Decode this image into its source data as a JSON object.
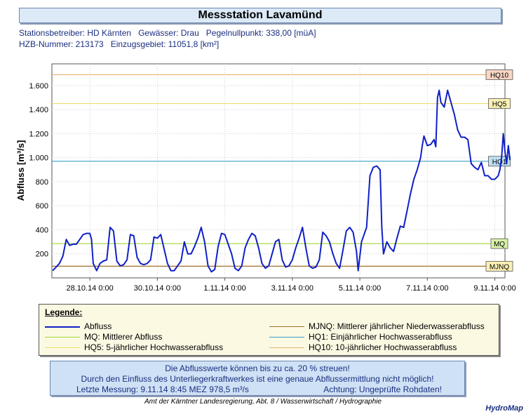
{
  "header": {
    "title": "Messstation Lavamünd",
    "meta_line1": "Stationsbetreiber: HD Kärnten   Gewässer: Drau   Pegelnullpunkt: 338,00 [müA]",
    "meta_line2": "HZB-Nummer: 213173   Einzugsgebiet: 11051,8 [km²]"
  },
  "chart_data": {
    "type": "line",
    "ylabel": "Abfluss [m³/s]",
    "ylim": [
      0,
      1780
    ],
    "yticks": [
      {
        "value": 200,
        "label": "200"
      },
      {
        "value": 400,
        "label": "400"
      },
      {
        "value": 600,
        "label": "600"
      },
      {
        "value": 800,
        "label": "800"
      },
      {
        "value": 1000,
        "label": "1.000"
      },
      {
        "value": 1200,
        "label": "1.200"
      },
      {
        "value": 1400,
        "label": "1.400"
      },
      {
        "value": 1600,
        "label": "1.600"
      }
    ],
    "xlim_days": [
      26.875,
      40.3
    ],
    "xticks": [
      {
        "day": 28,
        "label": "28.10.14 0:00"
      },
      {
        "day": 30,
        "label": "30.10.14 0:00"
      },
      {
        "day": 32,
        "label": "1.11.14 0:00"
      },
      {
        "day": 34,
        "label": "3.11.14 0:00"
      },
      {
        "day": 36,
        "label": "5.11.14 0:00"
      },
      {
        "day": 38,
        "label": "7.11.14 0:00"
      },
      {
        "day": 40,
        "label": "9.11.14 0:00"
      }
    ],
    "thresholds": [
      {
        "name": "HQ10",
        "value": 1690,
        "color": "#e8b070",
        "bg": "#f9d6c4"
      },
      {
        "name": "HQ5",
        "value": 1450,
        "color": "#f0dc70",
        "bg": "#fbf0b4"
      },
      {
        "name": "HQ1",
        "value": 970,
        "color": "#3aa0c8",
        "bg": "#bfe0f3"
      },
      {
        "name": "MQ",
        "value": 285,
        "color": "#a5d636",
        "bg": "#d7f2a7"
      },
      {
        "name": "MJNQ",
        "value": 97,
        "color": "#a0702a",
        "bg": "#fbf0b4"
      }
    ],
    "series": [
      {
        "name": "Abfluss",
        "color": "#1020c8",
        "points": [
          [
            26.9,
            60
          ],
          [
            27.1,
            120
          ],
          [
            27.2,
            180
          ],
          [
            27.3,
            320
          ],
          [
            27.4,
            270
          ],
          [
            27.5,
            280
          ],
          [
            27.6,
            280
          ],
          [
            27.7,
            320
          ],
          [
            27.8,
            360
          ],
          [
            27.9,
            370
          ],
          [
            28.0,
            370
          ],
          [
            28.05,
            320
          ],
          [
            28.1,
            120
          ],
          [
            28.2,
            60
          ],
          [
            28.3,
            120
          ],
          [
            28.4,
            140
          ],
          [
            28.5,
            150
          ],
          [
            28.6,
            420
          ],
          [
            28.7,
            390
          ],
          [
            28.8,
            140
          ],
          [
            28.9,
            100
          ],
          [
            29.0,
            110
          ],
          [
            29.1,
            150
          ],
          [
            29.2,
            360
          ],
          [
            29.3,
            350
          ],
          [
            29.4,
            170
          ],
          [
            29.5,
            120
          ],
          [
            29.6,
            110
          ],
          [
            29.7,
            120
          ],
          [
            29.8,
            150
          ],
          [
            29.9,
            340
          ],
          [
            30.0,
            330
          ],
          [
            30.1,
            360
          ],
          [
            30.2,
            240
          ],
          [
            30.3,
            120
          ],
          [
            30.4,
            60
          ],
          [
            30.5,
            60
          ],
          [
            30.6,
            100
          ],
          [
            30.7,
            140
          ],
          [
            30.8,
            300
          ],
          [
            30.9,
            200
          ],
          [
            31.0,
            200
          ],
          [
            31.1,
            260
          ],
          [
            31.2,
            330
          ],
          [
            31.3,
            420
          ],
          [
            31.4,
            300
          ],
          [
            31.5,
            100
          ],
          [
            31.6,
            50
          ],
          [
            31.7,
            70
          ],
          [
            31.8,
            260
          ],
          [
            31.9,
            370
          ],
          [
            32.0,
            360
          ],
          [
            32.1,
            280
          ],
          [
            32.2,
            200
          ],
          [
            32.3,
            80
          ],
          [
            32.4,
            60
          ],
          [
            32.5,
            100
          ],
          [
            32.6,
            250
          ],
          [
            32.7,
            320
          ],
          [
            32.8,
            370
          ],
          [
            32.9,
            350
          ],
          [
            33.0,
            250
          ],
          [
            33.1,
            120
          ],
          [
            33.2,
            80
          ],
          [
            33.3,
            100
          ],
          [
            33.4,
            200
          ],
          [
            33.5,
            300
          ],
          [
            33.6,
            320
          ],
          [
            33.7,
            150
          ],
          [
            33.8,
            90
          ],
          [
            33.9,
            100
          ],
          [
            34.0,
            150
          ],
          [
            34.1,
            250
          ],
          [
            34.2,
            330
          ],
          [
            34.3,
            420
          ],
          [
            34.4,
            250
          ],
          [
            34.5,
            100
          ],
          [
            34.6,
            80
          ],
          [
            34.7,
            90
          ],
          [
            34.8,
            150
          ],
          [
            34.9,
            380
          ],
          [
            35.0,
            350
          ],
          [
            35.1,
            300
          ],
          [
            35.2,
            200
          ],
          [
            35.3,
            120
          ],
          [
            35.4,
            80
          ],
          [
            35.5,
            230
          ],
          [
            35.6,
            390
          ],
          [
            35.7,
            420
          ],
          [
            35.8,
            380
          ],
          [
            35.9,
            220
          ],
          [
            35.95,
            60
          ],
          [
            36.05,
            300
          ],
          [
            36.2,
            420
          ],
          [
            36.3,
            850
          ],
          [
            36.4,
            920
          ],
          [
            36.5,
            930
          ],
          [
            36.6,
            900
          ],
          [
            36.65,
            420
          ],
          [
            36.7,
            200
          ],
          [
            36.8,
            300
          ],
          [
            36.9,
            250
          ],
          [
            37.0,
            220
          ],
          [
            37.1,
            330
          ],
          [
            37.2,
            430
          ],
          [
            37.3,
            420
          ],
          [
            37.4,
            560
          ],
          [
            37.5,
            700
          ],
          [
            37.6,
            820
          ],
          [
            37.7,
            900
          ],
          [
            37.8,
            1000
          ],
          [
            37.85,
            1100
          ],
          [
            37.9,
            1180
          ],
          [
            38.0,
            1100
          ],
          [
            38.1,
            1110
          ],
          [
            38.2,
            1150
          ],
          [
            38.25,
            1090
          ],
          [
            38.3,
            1500
          ],
          [
            38.35,
            1560
          ],
          [
            38.4,
            1460
          ],
          [
            38.5,
            1420
          ],
          [
            38.6,
            1560
          ],
          [
            38.7,
            1460
          ],
          [
            38.8,
            1360
          ],
          [
            38.9,
            1230
          ],
          [
            39.0,
            1170
          ],
          [
            39.1,
            1170
          ],
          [
            39.2,
            1150
          ],
          [
            39.25,
            1050
          ],
          [
            39.3,
            950
          ],
          [
            39.4,
            920
          ],
          [
            39.5,
            900
          ],
          [
            39.6,
            960
          ],
          [
            39.7,
            850
          ],
          [
            39.8,
            850
          ],
          [
            39.9,
            820
          ],
          [
            40.0,
            820
          ],
          [
            40.1,
            850
          ],
          [
            40.15,
            900
          ],
          [
            40.2,
            1000
          ],
          [
            40.25,
            1200
          ],
          [
            40.3,
            1050
          ],
          [
            40.35,
            950
          ],
          [
            40.4,
            1100
          ],
          [
            40.45,
            980
          ]
        ]
      }
    ]
  },
  "legend": {
    "title": "Legende:",
    "items": [
      {
        "label": "Abfluss",
        "color": "#1020c8"
      },
      {
        "label": "MQ: Mittlerer Abfluss",
        "color": "#a5d636"
      },
      {
        "label": "HQ5: 5-jährlicher Hochwasserabfluss",
        "color": "#f0dc70"
      },
      {
        "label": "MJNQ: Mittlerer jährlicher Niederwasserabfluss",
        "color": "#a0702a"
      },
      {
        "label": "HQ1: Einjährlicher Hochwasserabfluss",
        "color": "#3aa0c8"
      },
      {
        "label": "HQ10: 10-jährlicher Hochwasserabfluss",
        "color": "#e8b070"
      }
    ]
  },
  "notice": {
    "line1": "Die Abflusswerte können bis zu ca. 20 % streuen!",
    "line2": "Durch den Einfluss des Unterliegerkraftwerkes ist eine genaue Abflussermittlung nicht möglich!",
    "line3_left": "Letzte Messung:  9.11.14 8:45 MEZ   978,5 m³/s",
    "line3_right": "Achtung: Ungeprüfte Rohdaten!"
  },
  "footer": {
    "text": "Amt der Kärntner Landesregierung, Abt. 8 / Wasserwirtschaft / Hydrographie",
    "brand": "HydroMap"
  }
}
